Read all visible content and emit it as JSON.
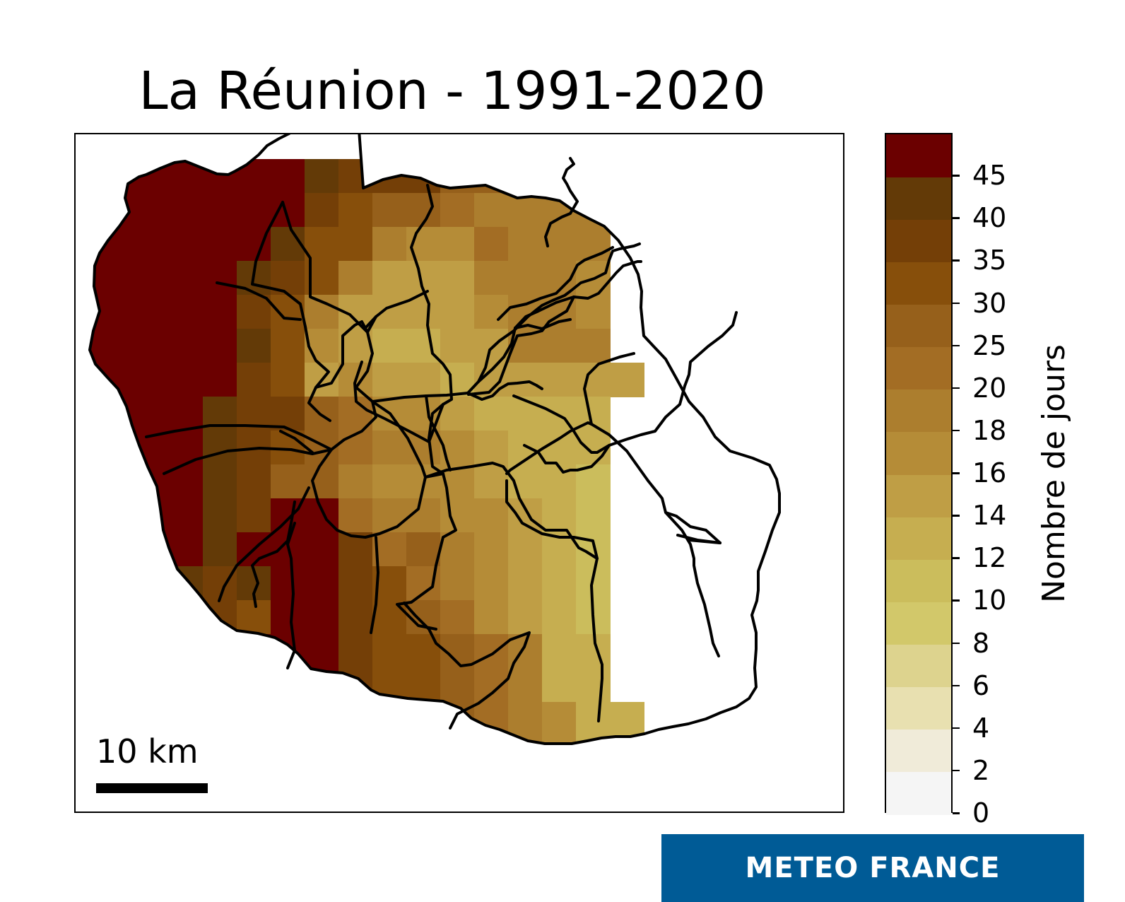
{
  "title": "La Réunion - 1991-2020",
  "scale_bar": {
    "label": "10 km"
  },
  "legend": {
    "label": "Nombre de jours",
    "ticks": [
      "0",
      "2",
      "4",
      "6",
      "8",
      "10",
      "12",
      "14",
      "16",
      "18",
      "20",
      "25",
      "30",
      "35",
      "40",
      "45"
    ],
    "colors": [
      "#f5f5f5",
      "#f0ebd9",
      "#e8e0b0",
      "#ddd38e",
      "#d2c86a",
      "#cbbd5c",
      "#c6ae50",
      "#bf9e45",
      "#b58c37",
      "#ac7e2e",
      "#a36d24",
      "#96601b",
      "#874f0b",
      "#743f07",
      "#633a07",
      "#6b0000"
    ]
  },
  "logo": {
    "text": "METEO FRANCE"
  }
}
